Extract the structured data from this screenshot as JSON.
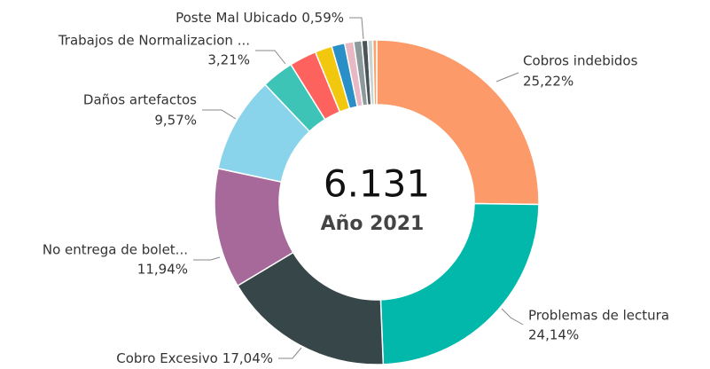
{
  "chart_data": {
    "type": "donut",
    "center_text": "6.131",
    "center_subtitle": "Año 2021",
    "categories": [
      "Cobros indebidos",
      "Problemas de lectura",
      "Cobro Excesivo",
      "No entrega de bolet...",
      "Daños artefactos",
      "Trabajos de Normalizacion ...",
      null,
      null,
      null,
      null,
      null,
      "Poste Mal Ubicado",
      null,
      null
    ],
    "values": [
      25.22,
      24.14,
      17.04,
      11.94,
      9.57,
      3.21,
      2.7,
      1.7,
      1.3,
      0.9,
      0.8,
      0.59,
      0.5,
      0.39
    ],
    "value_labels": [
      "25,22%",
      "24,14%",
      "17,04%",
      "11,94%",
      "9,57%",
      "3,21%",
      null,
      null,
      null,
      null,
      null,
      "0,59%",
      null,
      null
    ],
    "colors": [
      "#FD9A6A",
      "#01B8AA",
      "#374649",
      "#A66999",
      "#8AD4EB",
      "#3EC4B7",
      "#FD625E",
      "#F2C80F",
      "#2A8FC6",
      "#E8B9C4",
      "#8D9A9B",
      "#4A5456",
      "#C9D4D6",
      "#F5A66D"
    ]
  }
}
